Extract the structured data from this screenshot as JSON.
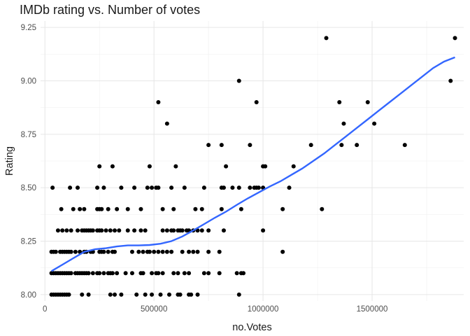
{
  "chart_data": {
    "type": "scatter",
    "title": "IMDb rating vs. Number of votes",
    "xlabel": "no.Votes",
    "ylabel": "Rating",
    "xlim": [
      -20000,
      1920000
    ],
    "ylim": [
      7.97,
      9.28
    ],
    "x_ticks": [
      0,
      500000,
      1000000,
      1500000
    ],
    "x_tick_labels": [
      "0",
      "500000",
      "1000000",
      "1500000"
    ],
    "y_ticks": [
      8.0,
      8.25,
      8.5,
      8.75,
      9.0,
      9.25
    ],
    "y_tick_labels": [
      "8.00",
      "8.25",
      "8.50",
      "8.75",
      "9.00",
      "9.25"
    ],
    "grid": true,
    "point_color": "#000000",
    "smooth_color": "#3366ff",
    "points": [
      [
        30000,
        8.0
      ],
      [
        40000,
        8.0
      ],
      [
        50000,
        8.0
      ],
      [
        60000,
        8.0
      ],
      [
        70000,
        8.0
      ],
      [
        80000,
        8.0
      ],
      [
        90000,
        8.0
      ],
      [
        100000,
        8.0
      ],
      [
        110000,
        8.0
      ],
      [
        170000,
        8.0
      ],
      [
        200000,
        8.0
      ],
      [
        300000,
        8.0
      ],
      [
        320000,
        8.0
      ],
      [
        350000,
        8.0
      ],
      [
        420000,
        8.0
      ],
      [
        460000,
        8.0
      ],
      [
        490000,
        8.0
      ],
      [
        530000,
        8.0
      ],
      [
        570000,
        8.0
      ],
      [
        610000,
        8.0
      ],
      [
        620000,
        8.0
      ],
      [
        660000,
        8.0
      ],
      [
        670000,
        8.0
      ],
      [
        700000,
        8.0
      ],
      [
        890000,
        8.0
      ],
      [
        30000,
        8.1
      ],
      [
        40000,
        8.1
      ],
      [
        50000,
        8.1
      ],
      [
        60000,
        8.1
      ],
      [
        70000,
        8.1
      ],
      [
        80000,
        8.1
      ],
      [
        90000,
        8.1
      ],
      [
        100000,
        8.1
      ],
      [
        110000,
        8.1
      ],
      [
        120000,
        8.1
      ],
      [
        140000,
        8.1
      ],
      [
        150000,
        8.1
      ],
      [
        160000,
        8.1
      ],
      [
        170000,
        8.1
      ],
      [
        180000,
        8.1
      ],
      [
        190000,
        8.1
      ],
      [
        200000,
        8.1
      ],
      [
        220000,
        8.1
      ],
      [
        240000,
        8.1
      ],
      [
        250000,
        8.1
      ],
      [
        270000,
        8.1
      ],
      [
        290000,
        8.1
      ],
      [
        300000,
        8.1
      ],
      [
        310000,
        8.1
      ],
      [
        330000,
        8.1
      ],
      [
        370000,
        8.1
      ],
      [
        400000,
        8.1
      ],
      [
        440000,
        8.1
      ],
      [
        450000,
        8.1
      ],
      [
        490000,
        8.1
      ],
      [
        510000,
        8.1
      ],
      [
        520000,
        8.1
      ],
      [
        540000,
        8.1
      ],
      [
        590000,
        8.1
      ],
      [
        610000,
        8.1
      ],
      [
        640000,
        8.1
      ],
      [
        660000,
        8.1
      ],
      [
        730000,
        8.1
      ],
      [
        750000,
        8.1
      ],
      [
        800000,
        8.1
      ],
      [
        880000,
        8.1
      ],
      [
        900000,
        8.1
      ],
      [
        910000,
        8.1
      ],
      [
        30000,
        8.2
      ],
      [
        40000,
        8.2
      ],
      [
        50000,
        8.2
      ],
      [
        70000,
        8.2
      ],
      [
        80000,
        8.2
      ],
      [
        90000,
        8.2
      ],
      [
        100000,
        8.2
      ],
      [
        110000,
        8.2
      ],
      [
        120000,
        8.2
      ],
      [
        140000,
        8.2
      ],
      [
        160000,
        8.2
      ],
      [
        180000,
        8.2
      ],
      [
        190000,
        8.2
      ],
      [
        210000,
        8.2
      ],
      [
        220000,
        8.2
      ],
      [
        250000,
        8.2
      ],
      [
        260000,
        8.2
      ],
      [
        270000,
        8.2
      ],
      [
        290000,
        8.2
      ],
      [
        310000,
        8.2
      ],
      [
        320000,
        8.2
      ],
      [
        400000,
        8.2
      ],
      [
        430000,
        8.2
      ],
      [
        450000,
        8.2
      ],
      [
        470000,
        8.2
      ],
      [
        480000,
        8.2
      ],
      [
        500000,
        8.2
      ],
      [
        520000,
        8.2
      ],
      [
        540000,
        8.2
      ],
      [
        560000,
        8.2
      ],
      [
        580000,
        8.2
      ],
      [
        630000,
        8.2
      ],
      [
        660000,
        8.2
      ],
      [
        680000,
        8.2
      ],
      [
        700000,
        8.2
      ],
      [
        750000,
        8.2
      ],
      [
        800000,
        8.2
      ],
      [
        1090000,
        8.2
      ],
      [
        60000,
        8.3
      ],
      [
        80000,
        8.3
      ],
      [
        100000,
        8.3
      ],
      [
        120000,
        8.3
      ],
      [
        150000,
        8.3
      ],
      [
        170000,
        8.3
      ],
      [
        180000,
        8.3
      ],
      [
        190000,
        8.3
      ],
      [
        200000,
        8.3
      ],
      [
        210000,
        8.3
      ],
      [
        220000,
        8.3
      ],
      [
        240000,
        8.3
      ],
      [
        250000,
        8.3
      ],
      [
        260000,
        8.3
      ],
      [
        280000,
        8.3
      ],
      [
        300000,
        8.3
      ],
      [
        320000,
        8.3
      ],
      [
        340000,
        8.3
      ],
      [
        380000,
        8.3
      ],
      [
        410000,
        8.3
      ],
      [
        440000,
        8.3
      ],
      [
        460000,
        8.3
      ],
      [
        540000,
        8.3
      ],
      [
        560000,
        8.3
      ],
      [
        580000,
        8.3
      ],
      [
        590000,
        8.3
      ],
      [
        610000,
        8.3
      ],
      [
        620000,
        8.3
      ],
      [
        630000,
        8.3
      ],
      [
        650000,
        8.3
      ],
      [
        660000,
        8.3
      ],
      [
        680000,
        8.3
      ],
      [
        700000,
        8.3
      ],
      [
        720000,
        8.3
      ],
      [
        750000,
        8.3
      ],
      [
        820000,
        8.3
      ],
      [
        1000000,
        8.3
      ],
      [
        75000,
        8.4
      ],
      [
        130000,
        8.4
      ],
      [
        160000,
        8.4
      ],
      [
        180000,
        8.4
      ],
      [
        240000,
        8.4
      ],
      [
        250000,
        8.4
      ],
      [
        260000,
        8.4
      ],
      [
        290000,
        8.4
      ],
      [
        330000,
        8.4
      ],
      [
        380000,
        8.4
      ],
      [
        440000,
        8.4
      ],
      [
        540000,
        8.4
      ],
      [
        590000,
        8.4
      ],
      [
        690000,
        8.4
      ],
      [
        720000,
        8.4
      ],
      [
        810000,
        8.4
      ],
      [
        900000,
        8.4
      ],
      [
        1090000,
        8.4
      ],
      [
        1270000,
        8.4
      ],
      [
        35000,
        8.5
      ],
      [
        115000,
        8.5
      ],
      [
        150000,
        8.5
      ],
      [
        240000,
        8.5
      ],
      [
        270000,
        8.5
      ],
      [
        350000,
        8.5
      ],
      [
        410000,
        8.5
      ],
      [
        470000,
        8.5
      ],
      [
        490000,
        8.5
      ],
      [
        510000,
        8.5
      ],
      [
        520000,
        8.5
      ],
      [
        580000,
        8.5
      ],
      [
        640000,
        8.5
      ],
      [
        730000,
        8.5
      ],
      [
        810000,
        8.5
      ],
      [
        820000,
        8.5
      ],
      [
        860000,
        8.5
      ],
      [
        890000,
        8.5
      ],
      [
        940000,
        8.5
      ],
      [
        960000,
        8.5
      ],
      [
        970000,
        8.5
      ],
      [
        980000,
        8.5
      ],
      [
        1000000,
        8.5
      ],
      [
        1120000,
        8.5
      ],
      [
        250000,
        8.6
      ],
      [
        310000,
        8.6
      ],
      [
        480000,
        8.6
      ],
      [
        600000,
        8.6
      ],
      [
        830000,
        8.6
      ],
      [
        1000000,
        8.6
      ],
      [
        1010000,
        8.6
      ],
      [
        1140000,
        8.6
      ],
      [
        750000,
        8.7
      ],
      [
        810000,
        8.7
      ],
      [
        940000,
        8.7
      ],
      [
        1220000,
        8.7
      ],
      [
        1360000,
        8.7
      ],
      [
        1430000,
        8.7
      ],
      [
        1650000,
        8.7
      ],
      [
        560000,
        8.8
      ],
      [
        1370000,
        8.8
      ],
      [
        1510000,
        8.8
      ],
      [
        520000,
        8.9
      ],
      [
        970000,
        8.9
      ],
      [
        1350000,
        8.9
      ],
      [
        1480000,
        8.9
      ],
      [
        890000,
        9.0
      ],
      [
        1860000,
        9.0
      ],
      [
        1290000,
        9.2
      ],
      [
        1880000,
        9.2
      ]
    ],
    "smooth": [
      [
        30000,
        8.11
      ],
      [
        80000,
        8.14
      ],
      [
        130000,
        8.17
      ],
      [
        180000,
        8.2
      ],
      [
        230000,
        8.212
      ],
      [
        280000,
        8.217
      ],
      [
        330000,
        8.225
      ],
      [
        380000,
        8.23
      ],
      [
        430000,
        8.23
      ],
      [
        480000,
        8.232
      ],
      [
        530000,
        8.238
      ],
      [
        580000,
        8.25
      ],
      [
        630000,
        8.272
      ],
      [
        680000,
        8.3
      ],
      [
        730000,
        8.33
      ],
      [
        780000,
        8.36
      ],
      [
        830000,
        8.388
      ],
      [
        880000,
        8.42
      ],
      [
        930000,
        8.45
      ],
      [
        980000,
        8.478
      ],
      [
        1030000,
        8.505
      ],
      [
        1080000,
        8.53
      ],
      [
        1130000,
        8.56
      ],
      [
        1180000,
        8.59
      ],
      [
        1230000,
        8.625
      ],
      [
        1280000,
        8.66
      ],
      [
        1330000,
        8.7
      ],
      [
        1380000,
        8.74
      ],
      [
        1430000,
        8.78
      ],
      [
        1480000,
        8.82
      ],
      [
        1530000,
        8.86
      ],
      [
        1580000,
        8.9
      ],
      [
        1630000,
        8.94
      ],
      [
        1680000,
        8.98
      ],
      [
        1730000,
        9.02
      ],
      [
        1780000,
        9.06
      ],
      [
        1830000,
        9.09
      ],
      [
        1880000,
        9.11
      ]
    ]
  }
}
